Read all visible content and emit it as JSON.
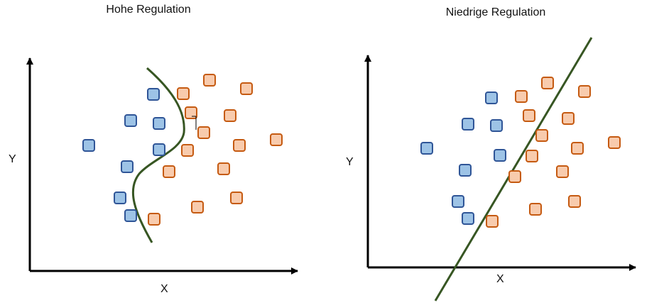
{
  "panels": [
    {
      "title": "Hohe Regulation",
      "xlabel": "X",
      "ylabel": "Y"
    },
    {
      "title": "Niedrige Regulation",
      "xlabel": "X",
      "ylabel": "Y"
    }
  ],
  "colors": {
    "axis": "#000000",
    "class_blue_fill": "#9dc3e6",
    "class_blue_stroke": "#2f5597",
    "class_orange_fill": "#f8cbad",
    "class_orange_stroke": "#c55a11",
    "decision_boundary": "#375623"
  },
  "legend": {
    "shape": "square",
    "class_names": []
  },
  "boundaries": [
    {
      "panel": "Hohe Regulation",
      "type": "curved-boundary"
    },
    {
      "panel": "Niedrige Regulation",
      "type": "straight-line-boundary"
    }
  ]
}
